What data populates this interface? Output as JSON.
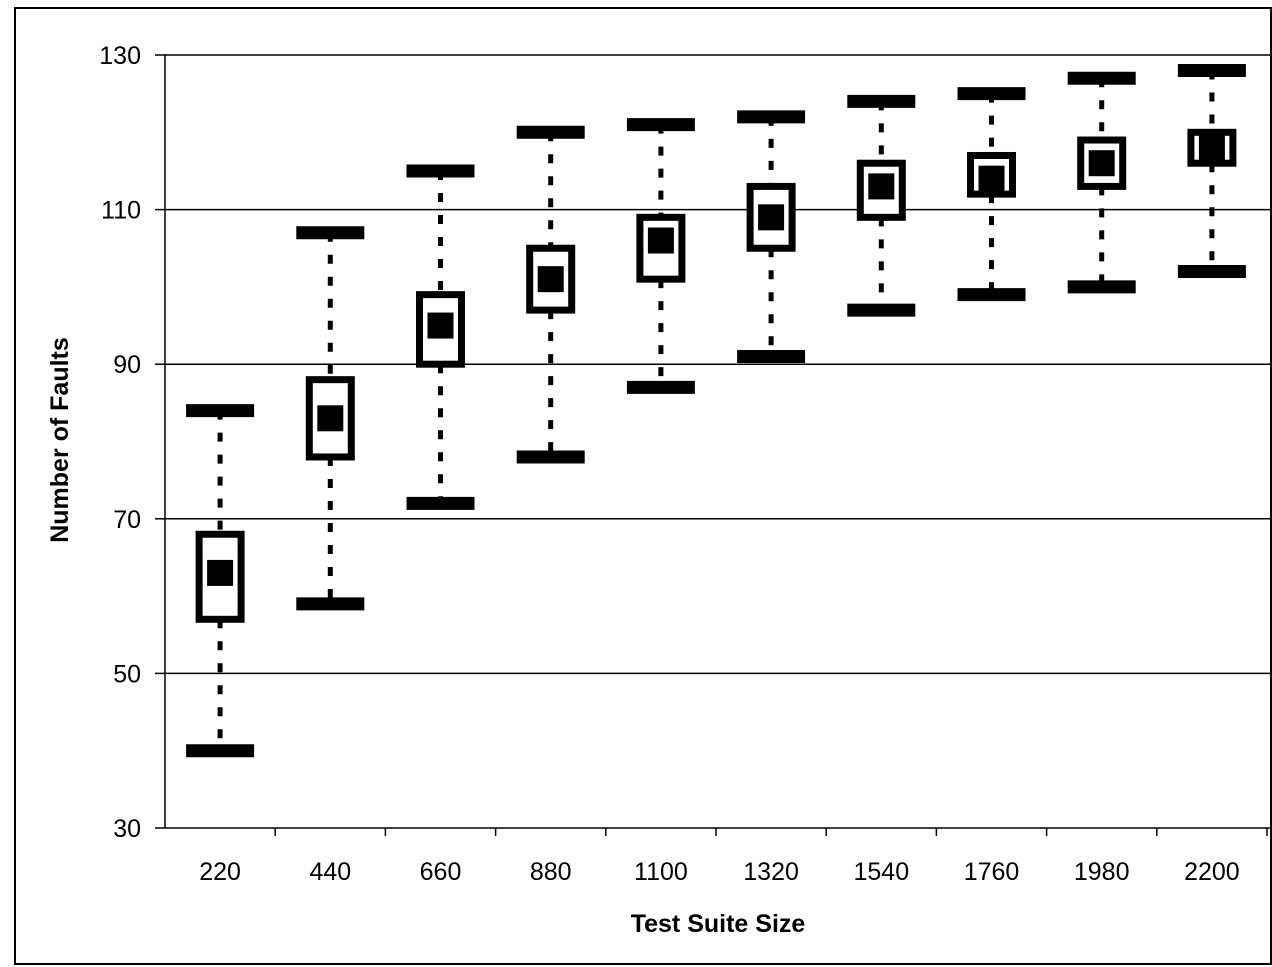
{
  "chart_data": {
    "type": "boxplot",
    "title": "",
    "xlabel": "Test Suite Size",
    "ylabel": "Number of Faults",
    "ylim": [
      30,
      130
    ],
    "yticks": [
      "30",
      "50",
      "70",
      "90",
      "110",
      "130"
    ],
    "grid": "horizontal",
    "legend": "none",
    "categories": [
      "220",
      "440",
      "660",
      "880",
      "1100",
      "1320",
      "1540",
      "1760",
      "1980",
      "2200"
    ],
    "series": [
      {
        "min": [
          40,
          59,
          72,
          78,
          87,
          91,
          97,
          99,
          100,
          102
        ],
        "q1": [
          57,
          78,
          90,
          97,
          101,
          105,
          109,
          112,
          113,
          116
        ],
        "median": [
          63,
          83,
          95,
          101,
          106,
          109,
          113,
          114,
          116,
          118
        ],
        "q3": [
          68,
          88,
          99,
          105,
          109,
          113,
          116,
          117,
          119,
          120
        ],
        "max": [
          84,
          107,
          115,
          120,
          121,
          122,
          124,
          125,
          127,
          128
        ]
      }
    ],
    "colors": {
      "marks": "#000000",
      "grid": "#000000",
      "background": "#ffffff"
    }
  }
}
